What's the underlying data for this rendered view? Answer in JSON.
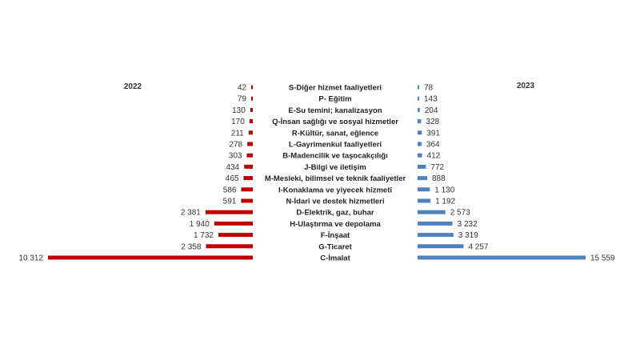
{
  "chart_data": {
    "type": "bar",
    "orientation": "horizontal-butterfly",
    "series": [
      {
        "name": "2022",
        "color": "#c00000",
        "values": [
          42,
          79,
          130,
          170,
          211,
          278,
          303,
          434,
          465,
          586,
          591,
          2381,
          1940,
          1732,
          2358,
          10312
        ],
        "labels": [
          "42",
          "79",
          "130",
          "170",
          "211",
          "278",
          "303",
          "434",
          "465",
          "586",
          "591",
          "2 381",
          "1 940",
          "1 732",
          "2 358",
          "10 312"
        ]
      },
      {
        "name": "2023",
        "color": "#4f81bd",
        "values": [
          78,
          143,
          204,
          328,
          391,
          364,
          412,
          772,
          888,
          1130,
          1192,
          2573,
          3232,
          3319,
          4257,
          15559
        ],
        "labels": [
          "78",
          "143",
          "204",
          "328",
          "391",
          "364",
          "412",
          "772",
          "888",
          "1 130",
          "1 192",
          "2 573",
          "3 232",
          "3 319",
          "4 257",
          "15 559"
        ]
      }
    ],
    "categories": [
      "S-Diğer hizmet faaliyetleri",
      "P- Eğitim",
      "E-Su temini; kanalizasyon",
      "Q-İnsan sağlığı ve sosyal hizmetler",
      "R-Kültür, sanat, eğlence",
      "L-Gayrimenkul faaliyetleri",
      "B-Madencilik ve taşocakçılığı",
      "J-Bilgi ve iletişim",
      "M-Mesleki, bilimsel ve teknik faaliyetler",
      "I-Konaklama ve yiyecek hizmeti",
      "N-İdari ve destek hizmetleri",
      "D-Elektrik, gaz, buhar",
      "H-Ulaştırma ve depolama",
      "F-İnşaat",
      "G-Ticaret",
      "C-İmalat"
    ],
    "grid": false,
    "legend": "none"
  }
}
